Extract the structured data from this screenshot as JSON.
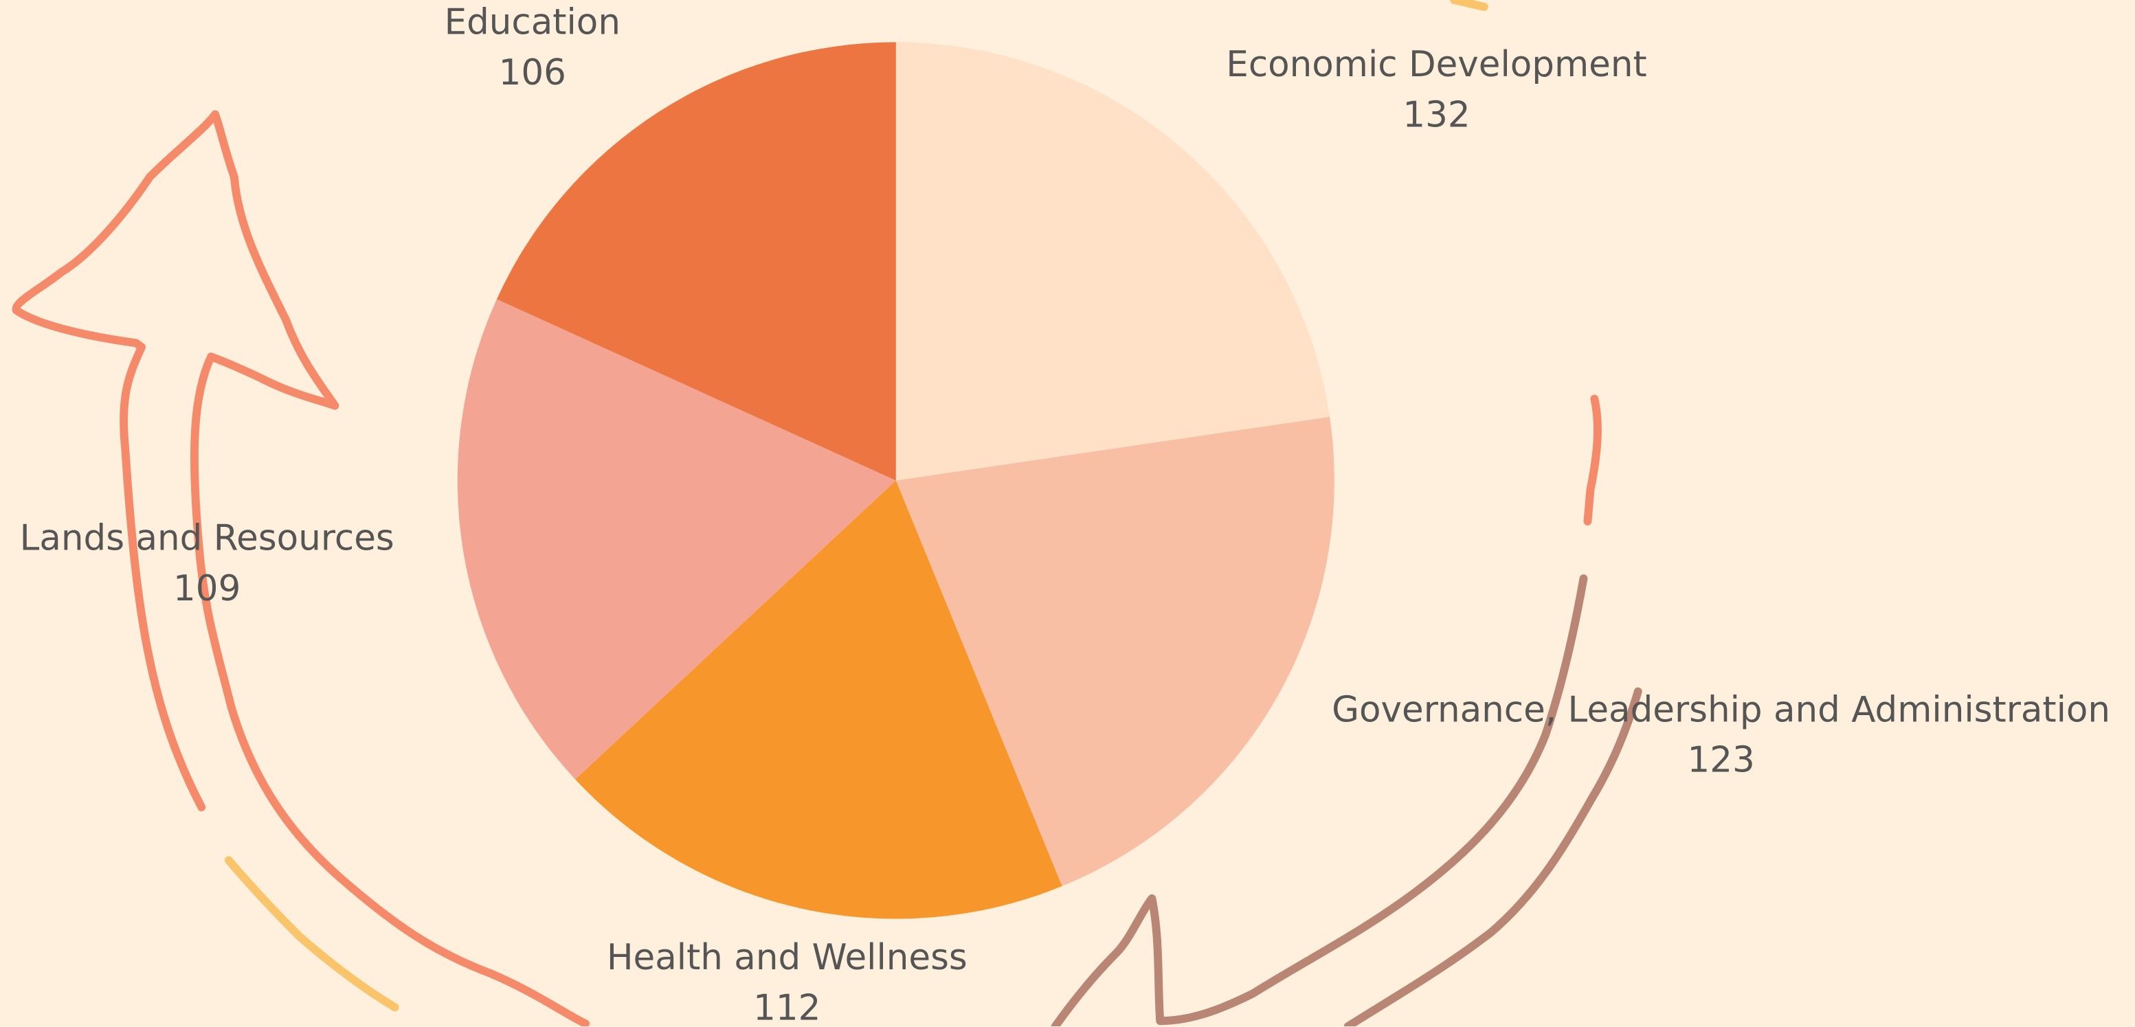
{
  "chart_data": {
    "type": "pie",
    "categories": [
      "Economic Development",
      "Governance, Leadership and Administration",
      "Health and Wellness",
      "Lands and Resources",
      "Education"
    ],
    "values": [
      132,
      123,
      112,
      109,
      106
    ],
    "colors": [
      "#fee1c6",
      "#f8bfa4",
      "#f7962a",
      "#f3a492",
      "#ec7542"
    ]
  }
}
